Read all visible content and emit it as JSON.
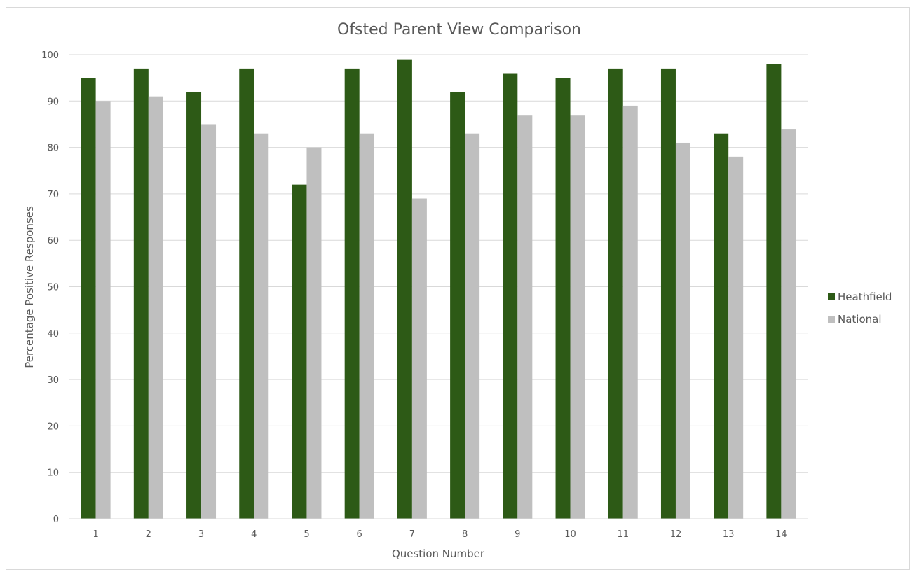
{
  "chart_data": {
    "type": "bar",
    "title": "Ofsted Parent View Comparison",
    "xlabel": "Question Number",
    "ylabel": "Percentage Positive Responses",
    "ylim": [
      0,
      100
    ],
    "yticks": [
      0,
      10,
      20,
      30,
      40,
      50,
      60,
      70,
      80,
      90,
      100
    ],
    "categories": [
      "1",
      "2",
      "3",
      "4",
      "5",
      "6",
      "7",
      "8",
      "9",
      "10",
      "11",
      "12",
      "13",
      "14"
    ],
    "series": [
      {
        "name": "Heathfield",
        "color": "#2d5a16",
        "values": [
          95,
          97,
          92,
          97,
          72,
          97,
          99,
          92,
          96,
          95,
          97,
          97,
          83,
          98
        ]
      },
      {
        "name": "National",
        "color": "#bfbfbf",
        "values": [
          90,
          91,
          85,
          83,
          80,
          83,
          69,
          83,
          87,
          87,
          89,
          81,
          78,
          84
        ]
      }
    ],
    "grid": true,
    "legend_position": "right"
  }
}
